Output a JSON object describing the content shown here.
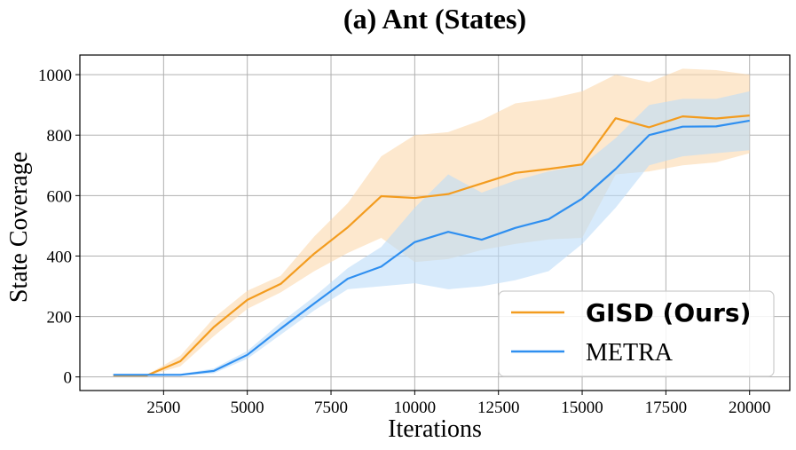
{
  "chart_data": {
    "type": "line",
    "title": "(a) Ant (States)",
    "xlabel": "Iterations",
    "ylabel": "State Coverage",
    "xlim": [
      0,
      21200
    ],
    "ylim": [
      -45,
      1065
    ],
    "xticks": [
      2500,
      5000,
      7500,
      10000,
      12500,
      15000,
      17500,
      20000
    ],
    "yticks": [
      0,
      200,
      400,
      600,
      800,
      1000
    ],
    "grid": true,
    "legend_position": "lower-right",
    "x": [
      1000,
      2000,
      3000,
      4000,
      5000,
      6000,
      7000,
      8000,
      9000,
      10000,
      11000,
      12000,
      13000,
      14000,
      15000,
      16000,
      17000,
      18000,
      19000,
      20000
    ],
    "series": [
      {
        "name": "GISD (Ours)",
        "color": "#f39c1f",
        "band_color": "#fcd9ad",
        "values": [
          5,
          5,
          52,
          165,
          255,
          308,
          408,
          495,
          598,
          592,
          605,
          640,
          675,
          688,
          703,
          856,
          826,
          862,
          855,
          865
        ],
        "lower": [
          3,
          3,
          35,
          135,
          225,
          280,
          350,
          410,
          460,
          380,
          390,
          420,
          440,
          455,
          460,
          670,
          680,
          700,
          710,
          740
        ],
        "upper": [
          7,
          7,
          70,
          195,
          285,
          335,
          465,
          575,
          730,
          800,
          810,
          850,
          905,
          920,
          945,
          1000,
          975,
          1020,
          1015,
          1000
        ]
      },
      {
        "name": "METRA",
        "color": "#2f8ff0",
        "band_color": "#bcdcf9",
        "values": [
          7,
          7,
          7,
          20,
          73,
          160,
          243,
          325,
          365,
          446,
          480,
          454,
          493,
          522,
          590,
          688,
          800,
          828,
          829,
          848
        ],
        "lower": [
          4,
          4,
          4,
          12,
          60,
          140,
          220,
          290,
          300,
          310,
          290,
          300,
          320,
          350,
          440,
          560,
          700,
          730,
          740,
          750
        ],
        "upper": [
          10,
          10,
          10,
          28,
          86,
          180,
          266,
          360,
          430,
          560,
          670,
          610,
          650,
          680,
          700,
          790,
          900,
          920,
          920,
          945
        ]
      }
    ]
  }
}
